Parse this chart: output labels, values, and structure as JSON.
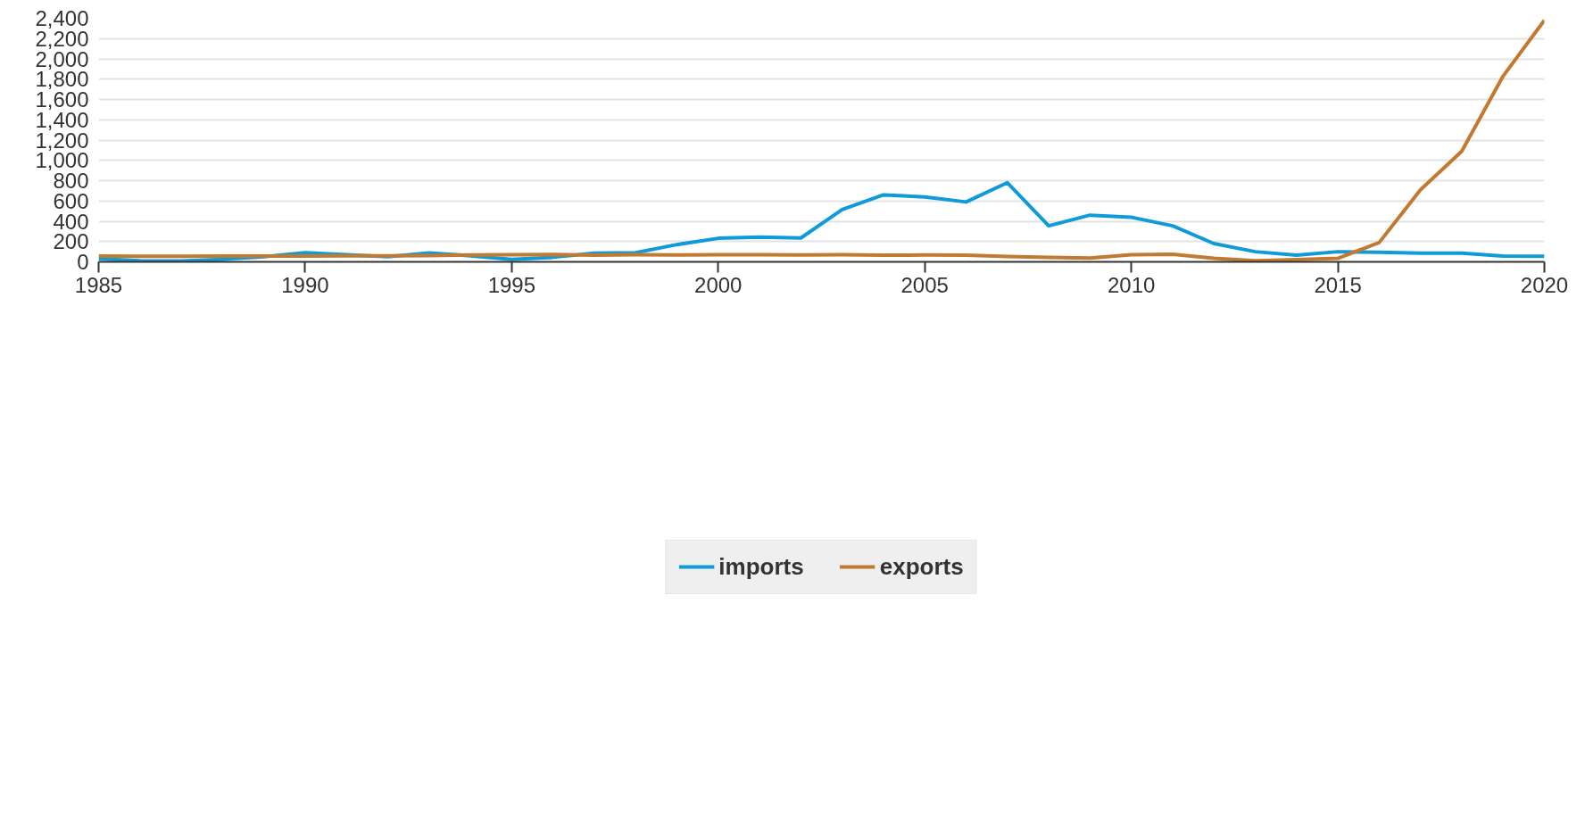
{
  "chart_data": {
    "type": "line",
    "x": [
      1985,
      1986,
      1987,
      1988,
      1989,
      1990,
      1991,
      1992,
      1993,
      1994,
      1995,
      1996,
      1997,
      1998,
      1999,
      2000,
      2001,
      2002,
      2003,
      2004,
      2005,
      2006,
      2007,
      2008,
      2009,
      2010,
      2011,
      2012,
      2013,
      2014,
      2015,
      2016,
      2017,
      2018,
      2019,
      2020
    ],
    "series": [
      {
        "name": "imports",
        "color": "#109bd8",
        "values": [
          30,
          10,
          8,
          25,
          50,
          90,
          70,
          50,
          88,
          60,
          25,
          45,
          85,
          90,
          170,
          232,
          245,
          235,
          515,
          660,
          640,
          590,
          780,
          355,
          460,
          440,
          355,
          180,
          100,
          65,
          100,
          95,
          85,
          85,
          58,
          55
        ]
      },
      {
        "name": "exports",
        "color": "#c27a30",
        "values": [
          58,
          55,
          54,
          57,
          57,
          58,
          60,
          60,
          62,
          68,
          70,
          73,
          67,
          70,
          68,
          70,
          70,
          68,
          70,
          65,
          68,
          65,
          52,
          45,
          38,
          70,
          75,
          35,
          10,
          22,
          35,
          190,
          710,
          1090,
          1830,
          2380
        ]
      }
    ],
    "xlim": [
      1985,
      2020
    ],
    "xticks": [
      1985,
      1990,
      1995,
      2000,
      2005,
      2010,
      2015,
      2020
    ],
    "ylim": [
      0,
      2400
    ],
    "yticks": [
      0,
      {
        "value": 200,
        "label": "200"
      },
      {
        "value": 400,
        "label": "400"
      },
      {
        "value": 600,
        "label": "600"
      },
      {
        "value": 800,
        "label": "800"
      },
      {
        "value": 1000,
        "label": "1,000"
      },
      {
        "value": 1200,
        "label": "1,200"
      },
      {
        "value": 1400,
        "label": "1,400"
      },
      {
        "value": 1600,
        "label": "1,600"
      },
      {
        "value": 1800,
        "label": "1,800"
      },
      {
        "value": 2000,
        "label": "2,000"
      },
      {
        "value": 2200,
        "label": "2,200"
      },
      {
        "value": 2400,
        "label": "2,400"
      }
    ],
    "grid": "y",
    "legend": "bottom",
    "marker": "none",
    "line_style": "solid"
  }
}
